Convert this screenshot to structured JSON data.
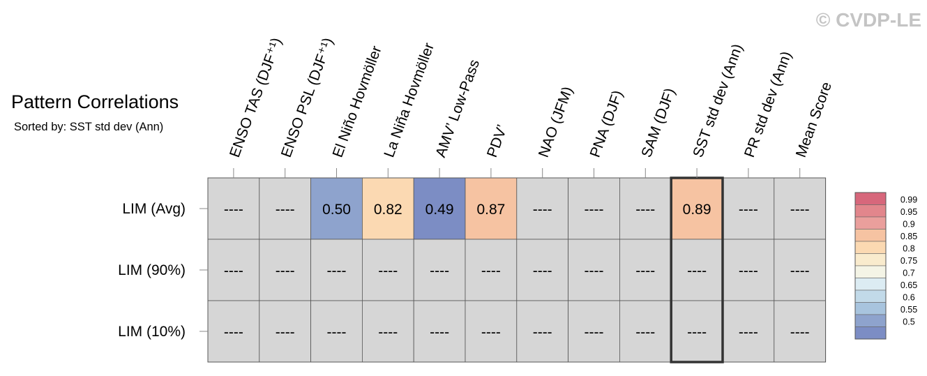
{
  "watermark": "© CVDP-LE",
  "title": "Pattern Correlations",
  "subtitle": "Sorted by: SST std dev (Ann)",
  "chart_data": {
    "type": "heatmap",
    "columns": [
      "ENSO TAS (DJF⁺¹)",
      "ENSO PSL (DJF⁺¹)",
      "El Niño Hovmöller",
      "La Niña Hovmöller",
      "AMV’ Low-Pass",
      "PDV’",
      "NAO (JFM)",
      "PNA (DJF)",
      "SAM (DJF)",
      "SST std dev (Ann)",
      "PR std dev (Ann)",
      "Mean Score"
    ],
    "rows": [
      "LIM (Avg)",
      "LIM (90%)",
      "LIM (10%)"
    ],
    "cells": [
      [
        "----",
        "----",
        "0.50",
        "0.82",
        "0.49",
        "0.87",
        "----",
        "----",
        "----",
        "0.89",
        "----",
        "----"
      ],
      [
        "----",
        "----",
        "----",
        "----",
        "----",
        "----",
        "----",
        "----",
        "----",
        "----",
        "----",
        "----"
      ],
      [
        "----",
        "----",
        "----",
        "----",
        "----",
        "----",
        "----",
        "----",
        "----",
        "----",
        "----",
        "----"
      ]
    ],
    "values": [
      [
        null,
        null,
        0.5,
        0.82,
        0.49,
        0.87,
        null,
        null,
        null,
        0.89,
        null,
        null
      ],
      [
        null,
        null,
        null,
        null,
        null,
        null,
        null,
        null,
        null,
        null,
        null,
        null
      ],
      [
        null,
        null,
        null,
        null,
        null,
        null,
        null,
        null,
        null,
        null,
        null,
        null
      ]
    ],
    "sorted_by": "SST std dev (Ann)",
    "highlight_column": 9,
    "missing_color": "#d6d6d6",
    "colorbar": {
      "levels": [
        "0.99",
        "0.95",
        "0.9",
        "0.85",
        "0.8",
        "0.75",
        "0.7",
        "0.65",
        "0.6",
        "0.55",
        "0.5"
      ],
      "colors": [
        "#d7677b",
        "#e2868c",
        "#ea9f9c",
        "#f6c3a2",
        "#fbd9b2",
        "#f9ebcd",
        "#f4f4e6",
        "#dcecf3",
        "#c2dae9",
        "#a8c4de",
        "#8ea3cd",
        "#7c8dc4"
      ]
    }
  }
}
